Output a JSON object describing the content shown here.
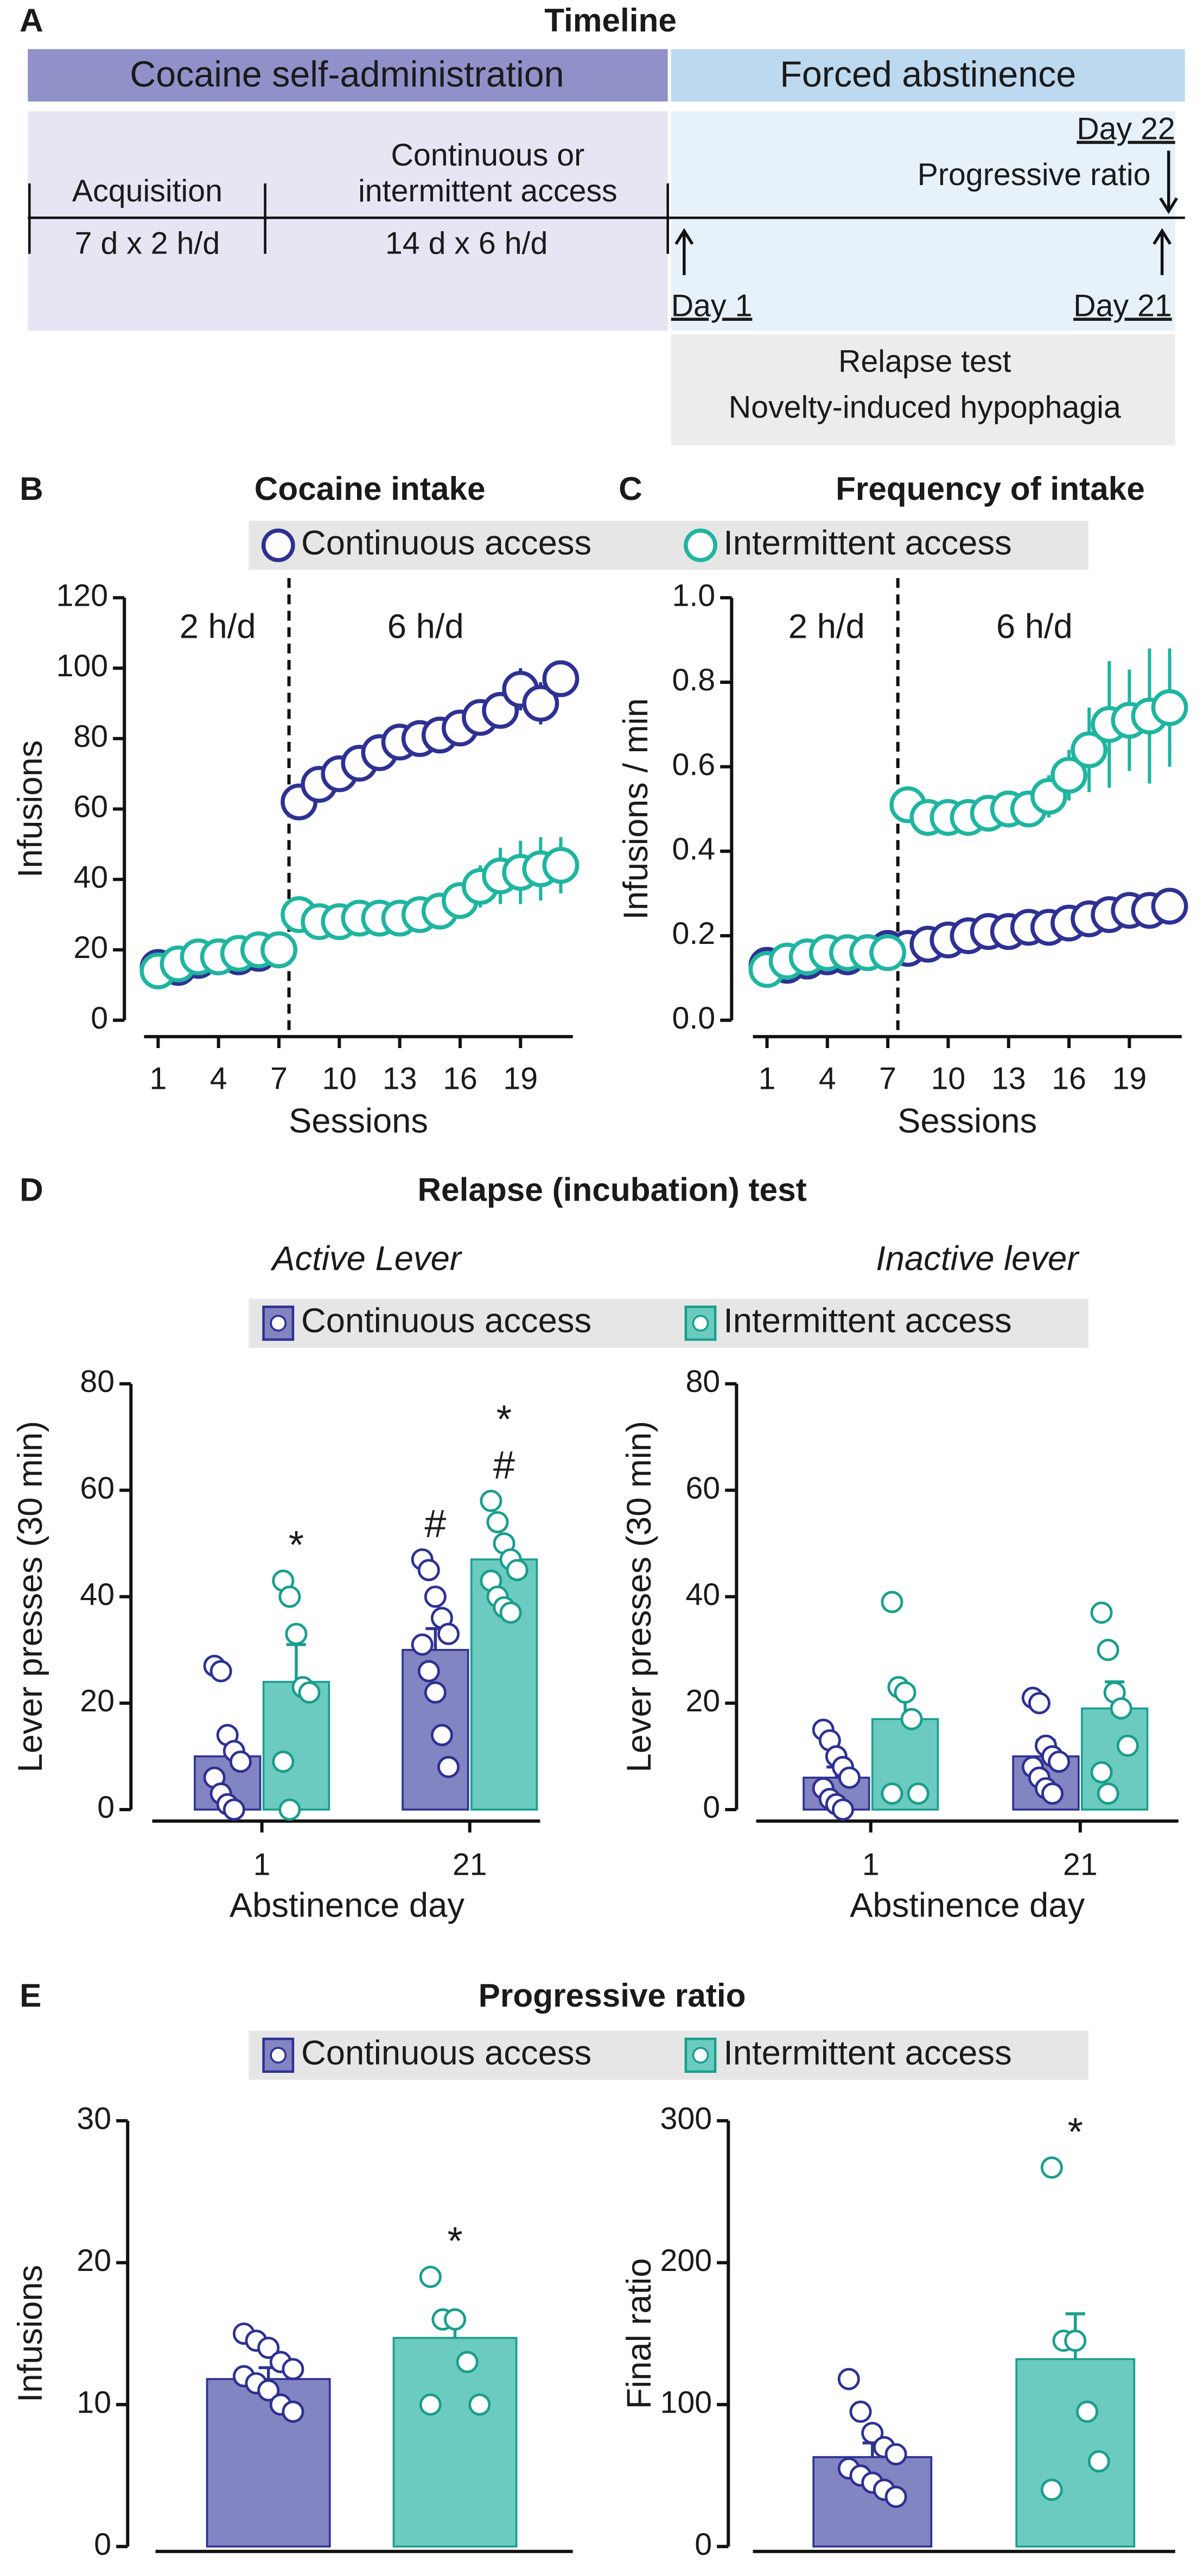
{
  "timeline": {
    "label": "A",
    "title": "Timeline",
    "phases": [
      "Cocaine self-administration",
      "Forced abstinence"
    ],
    "stages": [
      {
        "name": [
          "Acquisition"
        ],
        "duration": "7 d x 2 h/d"
      },
      {
        "name": [
          "Continuous or",
          "intermittent access"
        ],
        "duration": "14 d x 6 h/d"
      }
    ],
    "events": {
      "day1": "Day 1",
      "day21": "Day 21",
      "day22": "Day 22",
      "day22_test": "Progressive ratio"
    },
    "tests": [
      "Relapse test",
      "Novelty-induced hypophagia"
    ]
  },
  "sections": [
    {
      "label": "D",
      "title": "Relapse (incubation) test"
    },
    {
      "label": "E",
      "title": "Progressive ratio"
    }
  ],
  "chart_data": [
    {
      "type": "line",
      "label": "B",
      "title": "Cocaine intake",
      "xlabel": "Sessions",
      "ylabel": "Infusions",
      "legend": "circle",
      "x": [
        1,
        2,
        3,
        4,
        5,
        6,
        7,
        8,
        9,
        10,
        11,
        12,
        13,
        14,
        15,
        16,
        17,
        18,
        19,
        20,
        21
      ],
      "xlim": [
        0.3,
        21.6
      ],
      "xticks": [
        1,
        4,
        7,
        10,
        13,
        16,
        19
      ],
      "ylim": [
        0,
        120
      ],
      "yticks": [
        0,
        20,
        40,
        60,
        80,
        100,
        120
      ],
      "divider_x": 7.5,
      "annotations": [
        "2 h/d",
        "6 h/d"
      ],
      "series": [
        {
          "name": "Continuous access",
          "color": "#2e3192",
          "values": [
            15,
            15,
            17,
            18,
            18,
            19,
            20,
            62,
            67,
            70,
            73,
            76,
            79,
            80,
            81,
            83,
            86,
            88,
            94,
            90,
            97
          ],
          "errors": [
            2,
            2,
            2,
            2,
            2,
            2,
            2,
            4,
            4,
            4,
            4,
            4,
            4,
            4,
            4,
            4,
            4,
            5,
            6,
            6,
            5
          ]
        },
        {
          "name": "Intermittent access",
          "color": "#1fb5a0",
          "values": [
            14,
            16,
            18,
            18,
            19,
            20,
            20,
            30,
            28,
            28,
            29,
            29,
            29,
            30,
            31,
            34,
            38,
            41,
            42,
            43,
            44
          ],
          "errors": [
            2,
            2,
            2,
            2,
            2,
            2,
            2,
            3,
            3,
            3,
            3,
            3,
            3,
            3,
            4,
            5,
            6,
            8,
            9,
            9,
            8
          ]
        }
      ]
    },
    {
      "type": "line",
      "label": "C",
      "title": "Frequency of intake",
      "xlabel": "Sessions",
      "ylabel": "Infusions / min",
      "x": [
        1,
        2,
        3,
        4,
        5,
        6,
        7,
        8,
        9,
        10,
        11,
        12,
        13,
        14,
        15,
        16,
        17,
        18,
        19,
        20,
        21
      ],
      "xlim": [
        0.3,
        21.6
      ],
      "xticks": [
        1,
        4,
        7,
        10,
        13,
        16,
        19
      ],
      "ylim": [
        0,
        1
      ],
      "yticks": [
        {
          "value": 0,
          "label": "0.0"
        },
        0.2,
        0.4,
        0.6,
        0.8,
        {
          "value": 1,
          "label": "1.0"
        }
      ],
      "divider_x": 7.5,
      "annotations": [
        "2 h/d",
        "6 h/d"
      ],
      "series": [
        {
          "color": "#2e3192",
          "values": [
            0.13,
            0.13,
            0.14,
            0.15,
            0.15,
            0.16,
            0.17,
            0.17,
            0.18,
            0.19,
            0.2,
            0.21,
            0.21,
            0.22,
            0.22,
            0.23,
            0.24,
            0.25,
            0.26,
            0.26,
            0.27
          ],
          "errors": [
            0.02,
            0.02,
            0.02,
            0.02,
            0.02,
            0.02,
            0.02,
            0.02,
            0.02,
            0.02,
            0.02,
            0.02,
            0.02,
            0.02,
            0.02,
            0.02,
            0.02,
            0.03,
            0.03,
            0.03,
            0.03
          ]
        },
        {
          "color": "#1fb5a0",
          "values": [
            0.12,
            0.14,
            0.15,
            0.16,
            0.16,
            0.16,
            0.16,
            0.51,
            0.48,
            0.48,
            0.48,
            0.49,
            0.5,
            0.5,
            0.53,
            0.58,
            0.64,
            0.7,
            0.71,
            0.72,
            0.74
          ],
          "errors": [
            0.02,
            0.02,
            0.02,
            0.02,
            0.02,
            0.02,
            0.02,
            0.04,
            0.03,
            0.03,
            0.03,
            0.03,
            0.03,
            0.04,
            0.05,
            0.06,
            0.1,
            0.15,
            0.12,
            0.16,
            0.14
          ]
        }
      ]
    },
    {
      "type": "bar",
      "subtitle": "Active Lever",
      "xlabel": "Abstinence day",
      "ylabel": "Lever presses (30 min)",
      "legend": "square",
      "categories": [
        "1",
        "21"
      ],
      "ylim": [
        0,
        80
      ],
      "yticks": [
        0,
        20,
        40,
        60,
        80
      ],
      "series": [
        {
          "name": "Continuous access",
          "color": "#2e3192",
          "fill": "#8384c2",
          "values": [
            10,
            30
          ],
          "errors": [
            4,
            4
          ],
          "points": [
            [
              27,
              26,
              14,
              11,
              9,
              6,
              3,
              1,
              0
            ],
            [
              47,
              45,
              40,
              36,
              33,
              31,
              26,
              22,
              14,
              8
            ]
          ],
          "annotations": [
            [],
            [
              "#"
            ]
          ]
        },
        {
          "name": "Intermittent access",
          "color": "#1a9e8c",
          "fill": "#6ccbc0",
          "values": [
            24,
            47
          ],
          "errors": [
            7,
            3
          ],
          "points": [
            [
              43,
              40,
              33,
              23,
              22,
              9,
              0
            ],
            [
              58,
              54,
              50,
              47,
              45,
              43,
              40,
              38,
              37
            ]
          ],
          "annotations": [
            [
              "*"
            ],
            [
              "*",
              "#"
            ]
          ]
        }
      ]
    },
    {
      "type": "bar",
      "subtitle": "Inactive lever",
      "xlabel": "Abstinence day",
      "ylabel": "Lever presses (30 min)",
      "categories": [
        "1",
        "21"
      ],
      "ylim": [
        0,
        80
      ],
      "yticks": [
        0,
        20,
        40,
        60,
        80
      ],
      "series": [
        {
          "color": "#2e3192",
          "fill": "#8384c2",
          "values": [
            6,
            10
          ],
          "errors": [
            2,
            3
          ],
          "points": [
            [
              15,
              13,
              10,
              8,
              6,
              4,
              2,
              1,
              0
            ],
            [
              21,
              20,
              12,
              10,
              9,
              8,
              6,
              4,
              3
            ]
          ]
        },
        {
          "color": "#1a9e8c",
          "fill": "#6ccbc0",
          "values": [
            17,
            19
          ],
          "errors": [
            6,
            5
          ],
          "points": [
            [
              39,
              23,
              22,
              17,
              3,
              3
            ],
            [
              37,
              30,
              22,
              19,
              12,
              7,
              3
            ]
          ]
        }
      ]
    },
    {
      "type": "bar",
      "ylabel": "Infusions",
      "legend": "square",
      "ylim": [
        0,
        30
      ],
      "yticks": [
        0,
        10,
        20,
        30
      ],
      "series": [
        {
          "name": "Continuous access",
          "color": "#2e3192",
          "fill": "#8384c2",
          "values": [
            11.8
          ],
          "errors": [
            0.8
          ],
          "points": [
            [
              15,
              14.5,
              14,
              13,
              12.5,
              12,
              11.5,
              11,
              10,
              9.5
            ]
          ]
        },
        {
          "name": "Intermittent access",
          "color": "#1a9e8c",
          "fill": "#6ccbc0",
          "values": [
            14.7
          ],
          "errors": [
            1.5
          ],
          "points": [
            [
              19,
              16,
              16,
              13,
              10,
              10
            ]
          ],
          "annotations": [
            [
              "*"
            ]
          ]
        }
      ]
    },
    {
      "type": "bar",
      "ylabel": "Final ratio",
      "ylim": [
        0,
        300
      ],
      "yticks": [
        0,
        100,
        200,
        300
      ],
      "series": [
        {
          "color": "#2e3192",
          "fill": "#8384c2",
          "values": [
            63
          ],
          "errors": [
            10
          ],
          "points": [
            [
              118,
              95,
              80,
              70,
              65,
              55,
              50,
              45,
              40,
              35
            ]
          ]
        },
        {
          "color": "#1a9e8c",
          "fill": "#6ccbc0",
          "values": [
            132
          ],
          "errors": [
            32
          ],
          "points": [
            [
              267,
              145,
              145,
              95,
              60,
              40
            ]
          ],
          "annotations": [
            [
              "*"
            ]
          ]
        }
      ]
    }
  ]
}
